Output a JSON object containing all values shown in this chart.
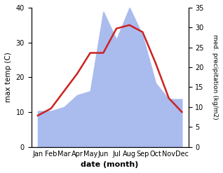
{
  "months": [
    "Jan",
    "Feb",
    "Mar",
    "Apr",
    "May",
    "Jun",
    "Jul",
    "Aug",
    "Sep",
    "Oct",
    "Nov",
    "Dec"
  ],
  "temp": [
    9,
    11,
    16,
    21,
    27,
    27,
    34,
    35,
    33,
    24,
    14,
    10
  ],
  "precip": [
    9,
    9,
    10,
    13,
    14,
    34,
    27,
    35,
    28,
    16,
    12,
    12
  ],
  "temp_color": "#cc2222",
  "precip_color": "#aabbee",
  "temp_ylim": [
    0,
    40
  ],
  "precip_ylim": [
    0,
    35
  ],
  "temp_yticks": [
    0,
    10,
    20,
    30,
    40
  ],
  "precip_yticks": [
    0,
    5,
    10,
    15,
    20,
    25,
    30,
    35
  ],
  "xlabel": "date (month)",
  "ylabel_left": "max temp (C)",
  "ylabel_right": "med. precipitation (kg/m2)",
  "bg_color": "#ffffff",
  "line_width": 1.8
}
